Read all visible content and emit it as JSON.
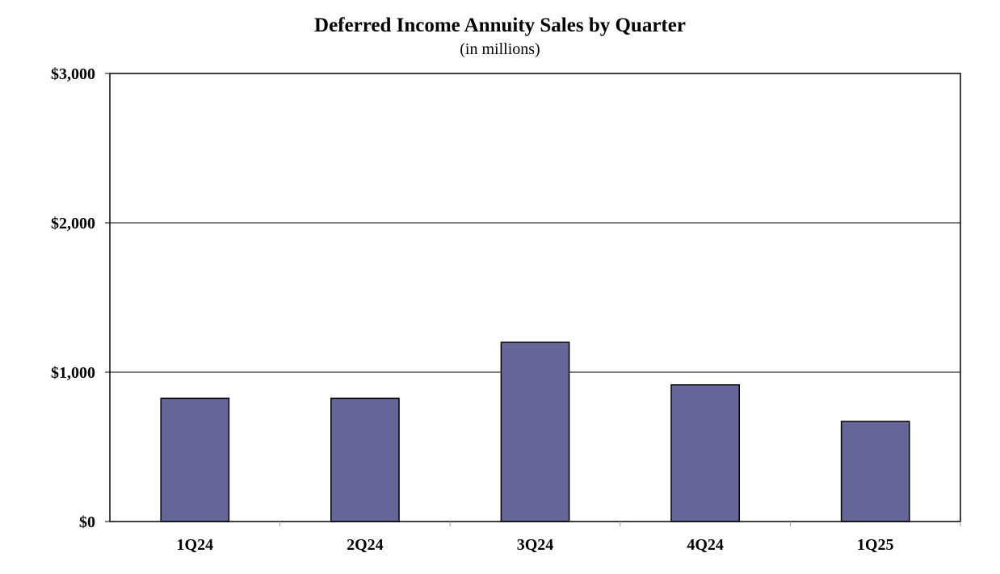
{
  "chart_data": {
    "type": "bar",
    "title": "Deferred Income Annuity Sales by Quarter",
    "subtitle": "(in millions)",
    "xlabel": "",
    "ylabel": "",
    "categories": [
      "1Q24",
      "2Q24",
      "3Q24",
      "4Q24",
      "1Q25"
    ],
    "values": [
      825,
      825,
      1200,
      915,
      670
    ],
    "ylim": [
      0,
      3000
    ],
    "yticks": [
      0,
      1000,
      2000,
      3000
    ],
    "ytick_labels": [
      "$0",
      "$1,000",
      "$2,000",
      "$3,000"
    ],
    "grid": true,
    "legend": "none",
    "colors": {
      "bar": "#676699",
      "bar_edge": "#000000",
      "grid": "#000000",
      "background": "#ffffff"
    }
  }
}
